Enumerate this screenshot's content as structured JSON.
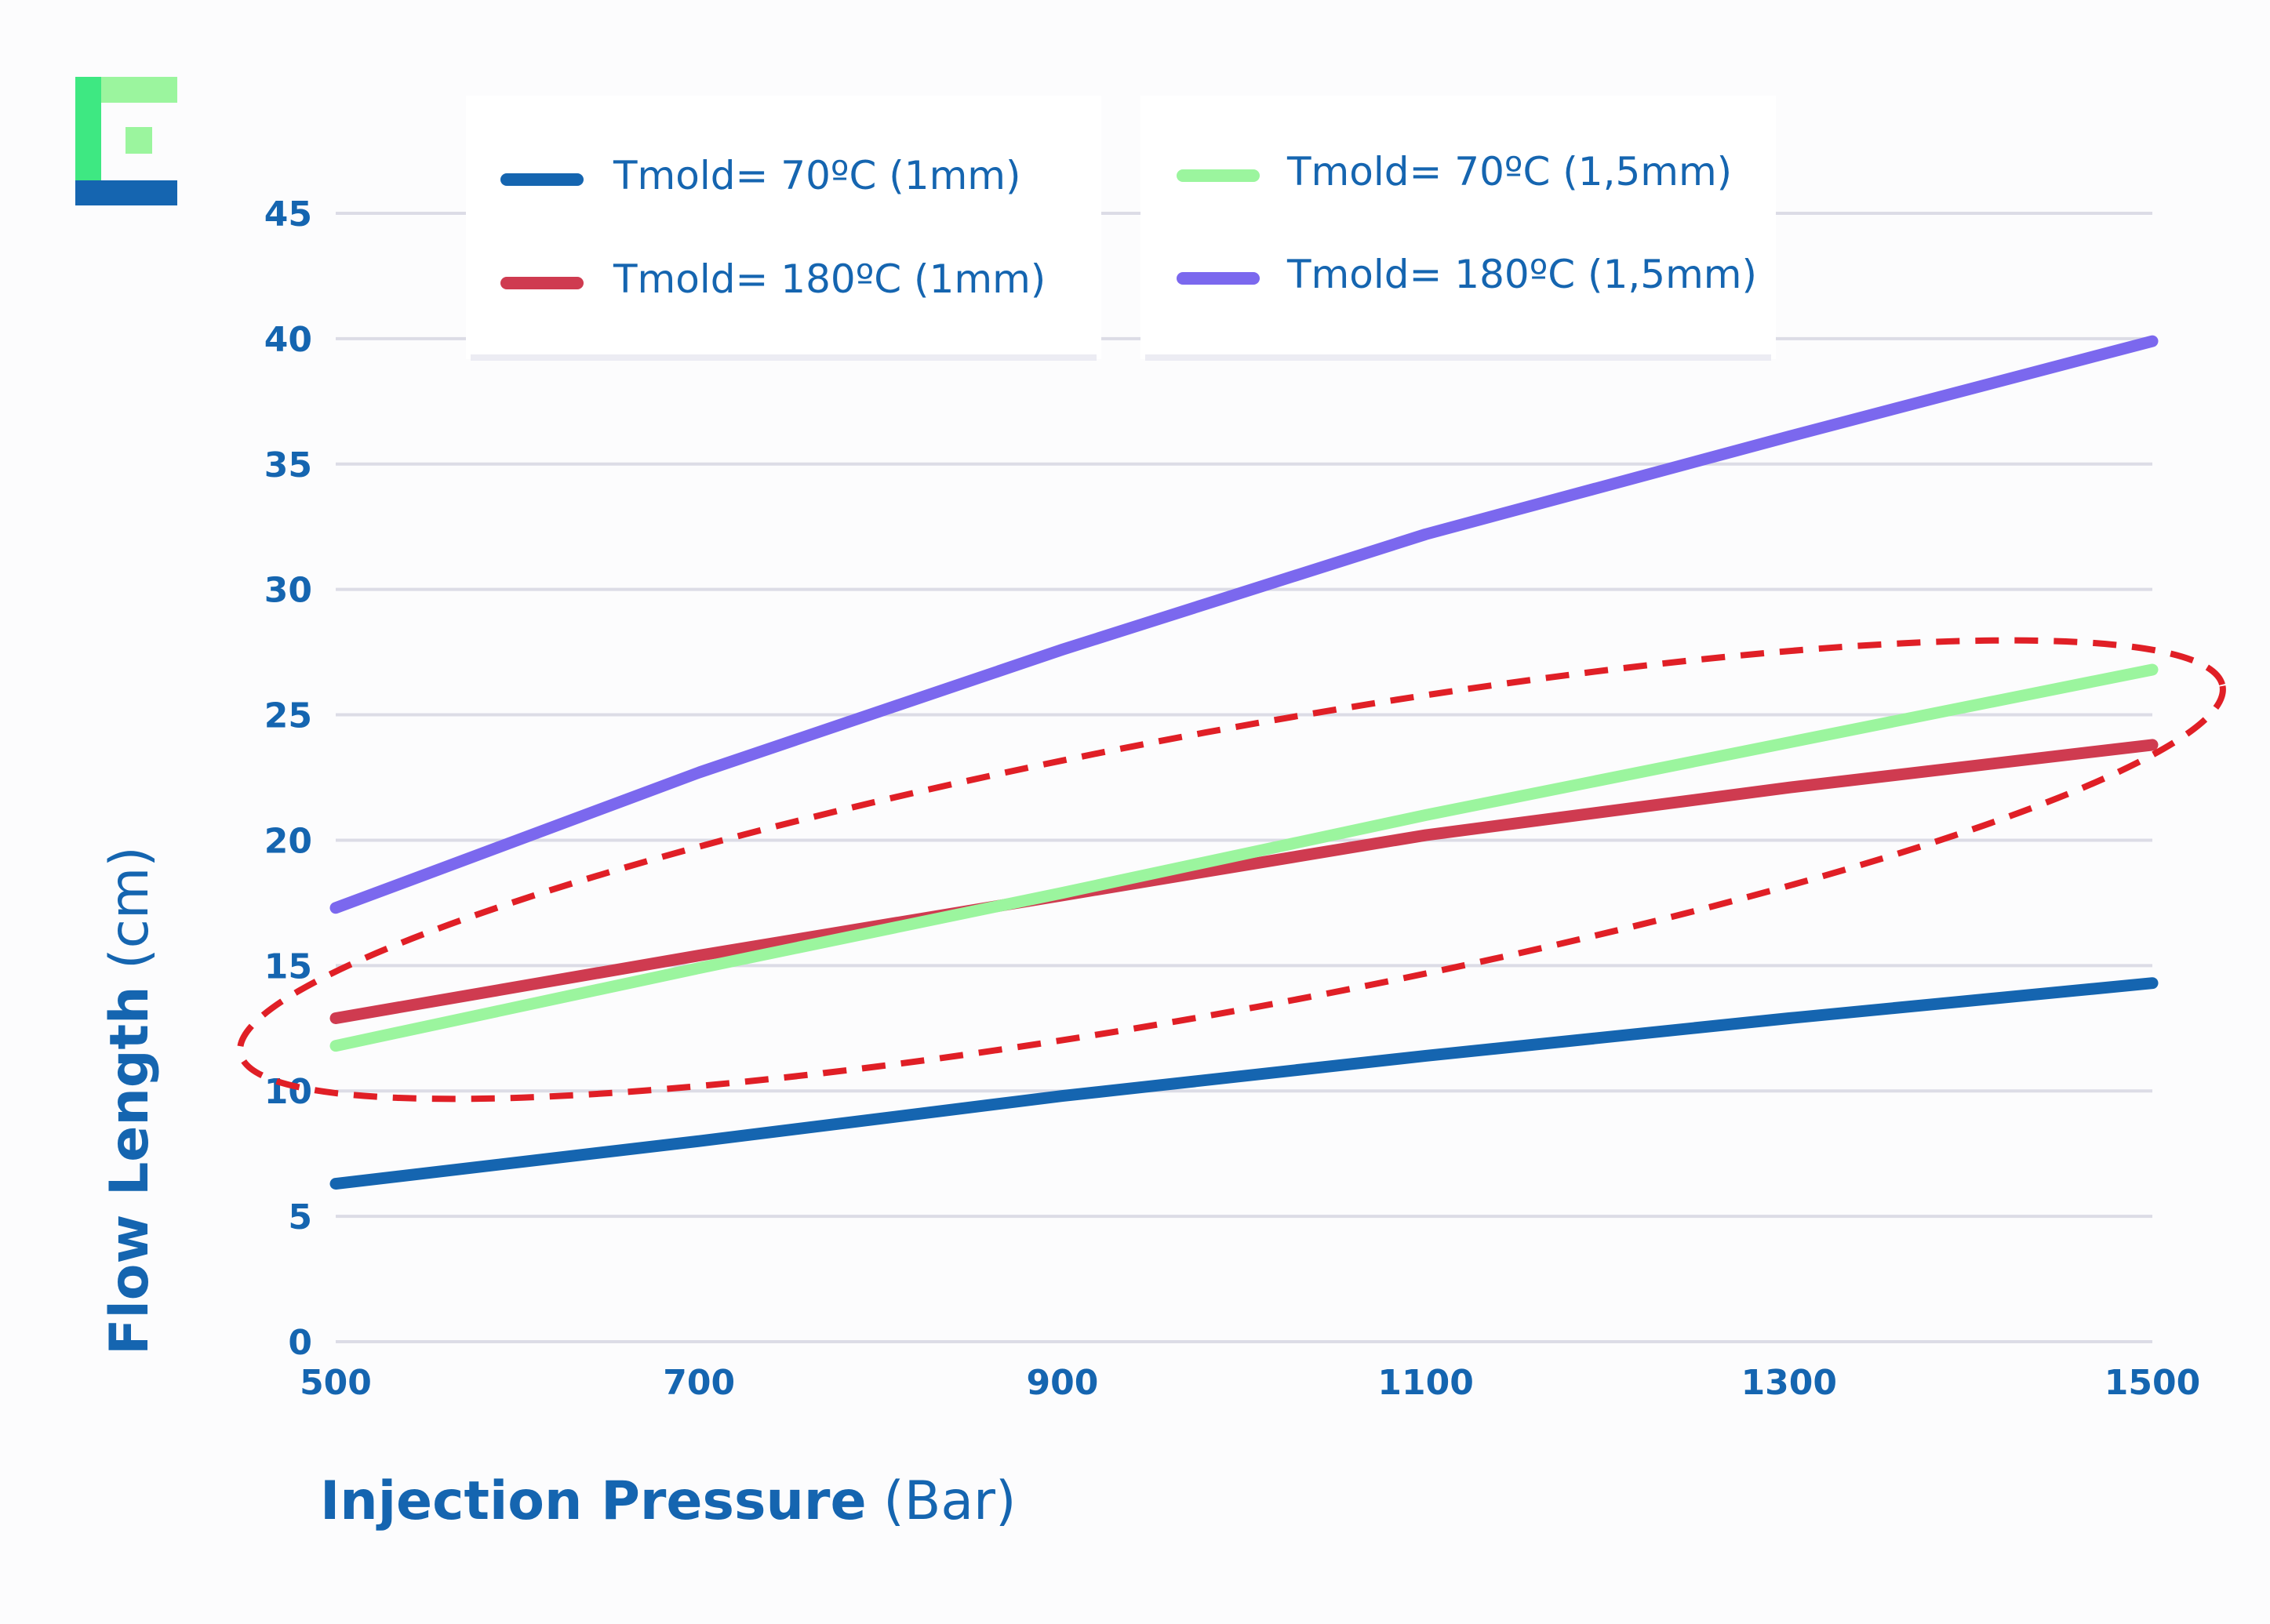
{
  "colors": {
    "text": "#1565b0",
    "grid": "#dcdce6",
    "annotation": "#e01f26",
    "logo_green": "#3ee882",
    "logo_light_green": "#9bf59e",
    "logo_blue": "#1565b0"
  },
  "chart_data": {
    "type": "line",
    "xlabel_bold": "Injection Pressure",
    "xlabel_unit": " (Bar)",
    "ylabel_bold": "Flow Length",
    "ylabel_unit": " (cm)",
    "xlim": [
      500,
      1500
    ],
    "ylim": [
      0,
      45
    ],
    "x_ticks": [
      "500",
      "700",
      "900",
      "1100",
      "1300",
      "1500"
    ],
    "y_ticks": [
      "0",
      "5",
      "10",
      "15",
      "20",
      "25",
      "30",
      "35",
      "40",
      "45"
    ],
    "grid": true,
    "legend_position": "top",
    "series": [
      {
        "name": "Tmold= 70ºC (1mm)",
        "color": "#1565b0",
        "points": [
          [
            500,
            6.3
          ],
          [
            700,
            8.0
          ],
          [
            900,
            9.8
          ],
          [
            1100,
            11.4
          ],
          [
            1300,
            12.9
          ],
          [
            1500,
            14.3
          ]
        ]
      },
      {
        "name": "Tmold= 180ºC (1mm)",
        "color": "#cf3b50",
        "points": [
          [
            500,
            12.9
          ],
          [
            700,
            15.4
          ],
          [
            900,
            17.8
          ],
          [
            1100,
            20.2
          ],
          [
            1300,
            22.1
          ],
          [
            1500,
            23.8
          ]
        ]
      },
      {
        "name": "Tmold= 70ºC (1,5mm)",
        "color": "#9bf59e",
        "points": [
          [
            500,
            11.8
          ],
          [
            700,
            14.9
          ],
          [
            900,
            17.9
          ],
          [
            1100,
            21.0
          ],
          [
            1300,
            23.9
          ],
          [
            1500,
            26.8
          ]
        ]
      },
      {
        "name": "Tmold= 180ºC (1,5mm)",
        "color": "#7b68ee",
        "points": [
          [
            500,
            17.3
          ],
          [
            700,
            22.7
          ],
          [
            900,
            27.6
          ],
          [
            1100,
            32.2
          ],
          [
            1300,
            36.1
          ],
          [
            1500,
            39.9
          ]
        ]
      }
    ],
    "annotation": {
      "type": "dashed-ellipse",
      "note": "encloses the Tmold= 180ºC (1mm) and Tmold= 70ºC (1,5mm) series"
    }
  }
}
